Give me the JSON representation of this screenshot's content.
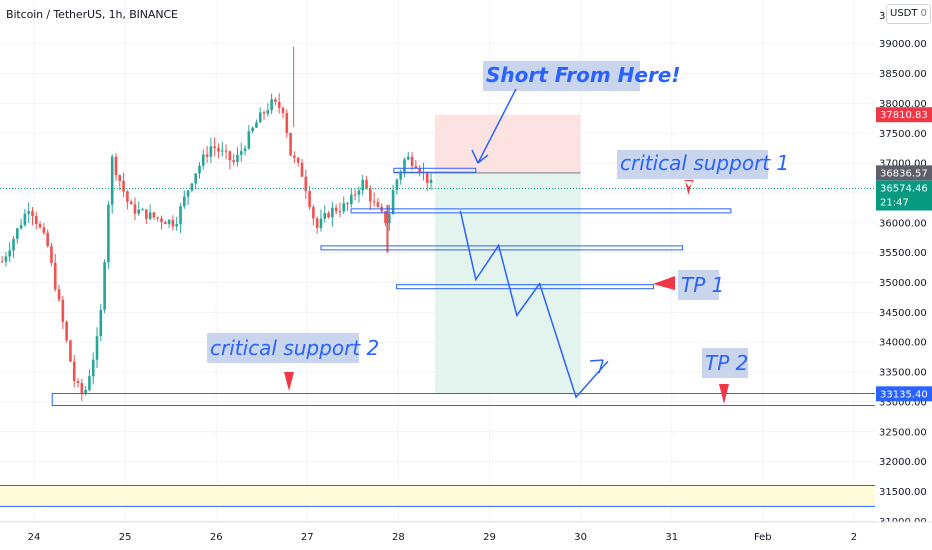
{
  "header": {
    "symbol_title": "Bitcoin / TetherUS, 1h, BINANCE",
    "currency": "USDT",
    "currency_suffix": "0",
    "clipped_top_label": "3"
  },
  "colors": {
    "up": "#26a69a",
    "down": "#ef5350",
    "drawing_blue": "#2962ff",
    "note_bg": "#c9d5ec",
    "stop_zone": "#fde2e2",
    "target_zone": "#e3f4ef",
    "badge_red": "#f23645",
    "badge_green": "#089981",
    "badge_gray": "#5d606b",
    "badge_blue": "#2962ff",
    "yellow_band": "#fffbd9"
  },
  "chart_data": {
    "type": "candlestick",
    "title": "Bitcoin / TetherUS, 1h, BINANCE",
    "xlabel": "",
    "ylabel": "",
    "ylim": [
      31000,
      39200
    ],
    "y_ticks": [
      31000,
      31500,
      32000,
      32500,
      33000,
      33500,
      34000,
      34500,
      35000,
      35500,
      36000,
      36500,
      37000,
      37500,
      38000,
      38500,
      39000
    ],
    "y_tick_labels": [
      "31000.00",
      "31500.00",
      "32000.00",
      "32500.00",
      "33000.00",
      "33500.00",
      "34000.00",
      "34500.00",
      "35000.00",
      "35500.00",
      "36000.00",
      "36500.00",
      "37000.00",
      "37500.00",
      "38000.00",
      "38500.00",
      "39000.00"
    ],
    "x_ticks": [
      "24",
      "25",
      "26",
      "27",
      "28",
      "29",
      "30",
      "31",
      "Feb",
      "2"
    ],
    "x_tick_positions_day": [
      0,
      1,
      2,
      3,
      4,
      5,
      6,
      7,
      8,
      9
    ],
    "grid": true,
    "price_badges": [
      {
        "value": "37810.83",
        "price": 37810.83,
        "color": "red"
      },
      {
        "value": "36836.57",
        "price": 36836.57,
        "color": "gray"
      },
      {
        "value": "36574.46",
        "price": 36574.46,
        "color": "green",
        "sub": "21:47"
      },
      {
        "value": "33135.40",
        "price": 33135.4,
        "color": "blue"
      }
    ],
    "current_price": 36574.46,
    "anchors": [
      {
        "day": -0.35,
        "price": 35350
      },
      {
        "day": -0.05,
        "price": 36300
      },
      {
        "day": 0.15,
        "price": 35600
      },
      {
        "day": 0.45,
        "price": 33300
      },
      {
        "day": 0.55,
        "price": 33100
      },
      {
        "day": 0.72,
        "price": 34200
      },
      {
        "day": 0.85,
        "price": 37100
      },
      {
        "day": 1.05,
        "price": 36250
      },
      {
        "day": 1.3,
        "price": 36100
      },
      {
        "day": 1.55,
        "price": 36000
      },
      {
        "day": 1.75,
        "price": 36800
      },
      {
        "day": 1.95,
        "price": 37300
      },
      {
        "day": 2.2,
        "price": 37000
      },
      {
        "day": 2.45,
        "price": 37700
      },
      {
        "day": 2.6,
        "price": 38000
      },
      {
        "day": 2.75,
        "price": 37900
      },
      {
        "day": 2.8,
        "price": 37200
      },
      {
        "day": 2.95,
        "price": 36800
      },
      {
        "day": 3.1,
        "price": 35900
      },
      {
        "day": 3.25,
        "price": 36200
      },
      {
        "day": 3.45,
        "price": 36300
      },
      {
        "day": 3.6,
        "price": 36700
      },
      {
        "day": 3.75,
        "price": 36250
      },
      {
        "day": 3.88,
        "price": 36000
      },
      {
        "day": 3.95,
        "price": 36600
      },
      {
        "day": 4.08,
        "price": 37100
      },
      {
        "day": 4.2,
        "price": 37000
      },
      {
        "day": 4.38,
        "price": 36580
      }
    ],
    "drawings": {
      "short_entry": 36836.57,
      "stop_loss": 37810.83,
      "take_profit": 33135.4,
      "position_start_day": 4.4,
      "position_end_day": 6.0,
      "support_lines": [
        {
          "name": "critical support 1",
          "price": 36200,
          "from_day": 3.48,
          "to_day": 7.65
        },
        {
          "name": "support 2",
          "price": 35580,
          "from_day": 3.15,
          "to_day": 7.12
        },
        {
          "name": "TP 1",
          "price": 34930,
          "from_day": 3.98,
          "to_day": 6.8
        },
        {
          "name": "critical support 2",
          "price": 33040,
          "from_day": 0.2,
          "to_day": 9.7
        },
        {
          "name": "entry box",
          "price": 36880,
          "from_day": 3.95,
          "to_day": 4.85
        }
      ],
      "projection": [
        {
          "day": 4.68,
          "price": 36200
        },
        {
          "day": 4.85,
          "price": 35050
        },
        {
          "day": 5.1,
          "price": 35620
        },
        {
          "day": 5.3,
          "price": 34450
        },
        {
          "day": 5.55,
          "price": 34980
        },
        {
          "day": 5.95,
          "price": 33080
        },
        {
          "day": 6.3,
          "price": 33680
        }
      ]
    }
  },
  "annotations": {
    "short_note": "Short From Here!",
    "support1_note": "critical support 1",
    "support2_note": "critical support 2",
    "tp1_note": "TP 1",
    "tp2_note": "TP 2"
  }
}
